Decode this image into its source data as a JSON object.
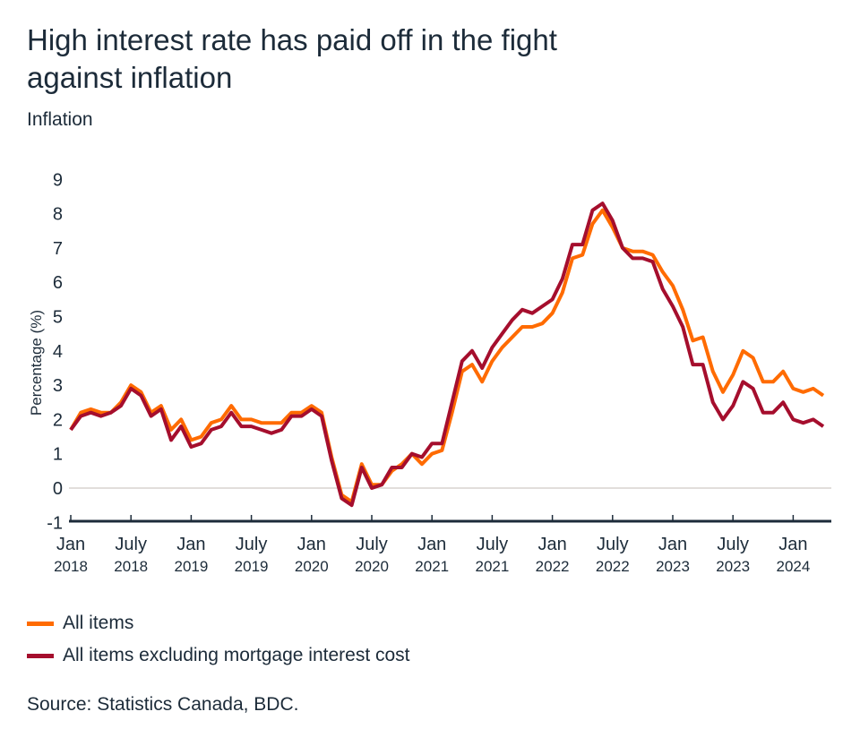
{
  "chart_data": {
    "type": "line",
    "title": "High interest rate has paid off in the fight against inflation",
    "subtitle": "Inflation",
    "ylabel": "Percentage (%)",
    "xlabel": "",
    "ylim": [
      -1,
      9
    ],
    "yticks": [
      -1,
      0,
      1,
      2,
      3,
      4,
      5,
      6,
      7,
      8,
      9
    ],
    "x_start": "2018-01",
    "x_end": "2024-04",
    "xticks": [
      {
        "month": "2018-01",
        "label1": "Jan",
        "label2": "2018"
      },
      {
        "month": "2018-07",
        "label1": "July",
        "label2": "2018"
      },
      {
        "month": "2019-01",
        "label1": "Jan",
        "label2": "2019"
      },
      {
        "month": "2019-07",
        "label1": "July",
        "label2": "2019"
      },
      {
        "month": "2020-01",
        "label1": "Jan",
        "label2": "2020"
      },
      {
        "month": "2020-07",
        "label1": "July",
        "label2": "2020"
      },
      {
        "month": "2021-01",
        "label1": "Jan",
        "label2": "2021"
      },
      {
        "month": "2021-07",
        "label1": "July",
        "label2": "2021"
      },
      {
        "month": "2022-01",
        "label1": "Jan",
        "label2": "2022"
      },
      {
        "month": "2022-07",
        "label1": "July",
        "label2": "2022"
      },
      {
        "month": "2023-01",
        "label1": "Jan",
        "label2": "2023"
      },
      {
        "month": "2023-07",
        "label1": "July",
        "label2": "2023"
      },
      {
        "month": "2024-01",
        "label1": "Jan",
        "label2": "2024"
      }
    ],
    "grid": false,
    "zero_line": true,
    "legend_placement": "bottom",
    "series": [
      {
        "name": "All items",
        "color": "#ff6b00",
        "values": [
          1.7,
          2.2,
          2.3,
          2.2,
          2.2,
          2.5,
          3.0,
          2.8,
          2.2,
          2.4,
          1.7,
          2.0,
          1.4,
          1.5,
          1.9,
          2.0,
          2.4,
          2.0,
          2.0,
          1.9,
          1.9,
          1.9,
          2.2,
          2.2,
          2.4,
          2.2,
          0.9,
          -0.2,
          -0.4,
          0.7,
          0.1,
          0.1,
          0.5,
          0.7,
          1.0,
          0.7,
          1.0,
          1.1,
          2.2,
          3.4,
          3.6,
          3.1,
          3.7,
          4.1,
          4.4,
          4.7,
          4.7,
          4.8,
          5.1,
          5.7,
          6.7,
          6.8,
          7.7,
          8.1,
          7.6,
          7.0,
          6.9,
          6.9,
          6.8,
          6.3,
          5.9,
          5.2,
          4.3,
          4.4,
          3.4,
          2.8,
          3.3,
          4.0,
          3.8,
          3.1,
          3.1,
          3.4,
          2.9,
          2.8,
          2.9,
          2.7
        ]
      },
      {
        "name": "All items excluding mortgage interest cost",
        "color": "#a50e2d",
        "values": [
          1.7,
          2.1,
          2.2,
          2.1,
          2.2,
          2.4,
          2.9,
          2.7,
          2.1,
          2.3,
          1.4,
          1.8,
          1.2,
          1.3,
          1.7,
          1.8,
          2.2,
          1.8,
          1.8,
          1.7,
          1.6,
          1.7,
          2.1,
          2.1,
          2.3,
          2.1,
          0.8,
          -0.3,
          -0.5,
          0.6,
          0.0,
          0.1,
          0.6,
          0.6,
          1.0,
          0.9,
          1.3,
          1.3,
          2.5,
          3.7,
          4.0,
          3.5,
          4.1,
          4.5,
          4.9,
          5.2,
          5.1,
          5.3,
          5.5,
          6.1,
          7.1,
          7.1,
          8.1,
          8.3,
          7.8,
          7.0,
          6.7,
          6.7,
          6.6,
          5.8,
          5.3,
          4.7,
          3.6,
          3.6,
          2.5,
          2.0,
          2.4,
          3.1,
          2.9,
          2.2,
          2.2,
          2.5,
          2.0,
          1.9,
          2.0,
          1.8
        ]
      }
    ],
    "source": "Source: Statistics Canada, BDC."
  }
}
